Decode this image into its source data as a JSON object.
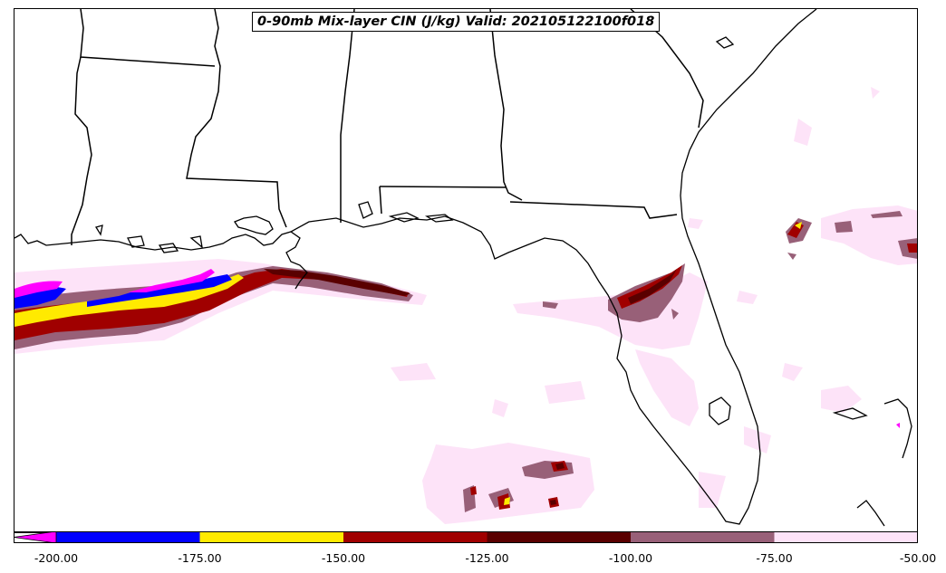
{
  "map": {
    "title": "0-90mb Mix-layer CIN (J/kg) Valid: 202105122100f018",
    "region": "Southeastern United States and Gulf of Mexico",
    "field": "CIN",
    "units": "J/kg"
  },
  "colorbar": {
    "extend": "min",
    "under_color": "#ff00ff",
    "levels": [
      {
        "from": -200,
        "to": -175,
        "color": "#0000ff"
      },
      {
        "from": -175,
        "to": -150,
        "color": "#ffea00"
      },
      {
        "from": -150,
        "to": -125,
        "color": "#a00000"
      },
      {
        "from": -125,
        "to": -100,
        "color": "#5a0000"
      },
      {
        "from": -100,
        "to": -75,
        "color": "#986078"
      },
      {
        "from": -75,
        "to": -50,
        "color": "#fde3f8"
      }
    ],
    "tick_labels": [
      "-200.00",
      "-175.00",
      "-150.00",
      "-125.00",
      "-100.00",
      "-75.00",
      "-50.00"
    ]
  },
  "colors": {
    "magenta": "#ff00ff",
    "blue": "#0000ff",
    "yellow": "#ffea00",
    "red": "#a00000",
    "darkred": "#5a0000",
    "mauve": "#986078",
    "pink": "#fde3f8",
    "outline": "#000000"
  }
}
